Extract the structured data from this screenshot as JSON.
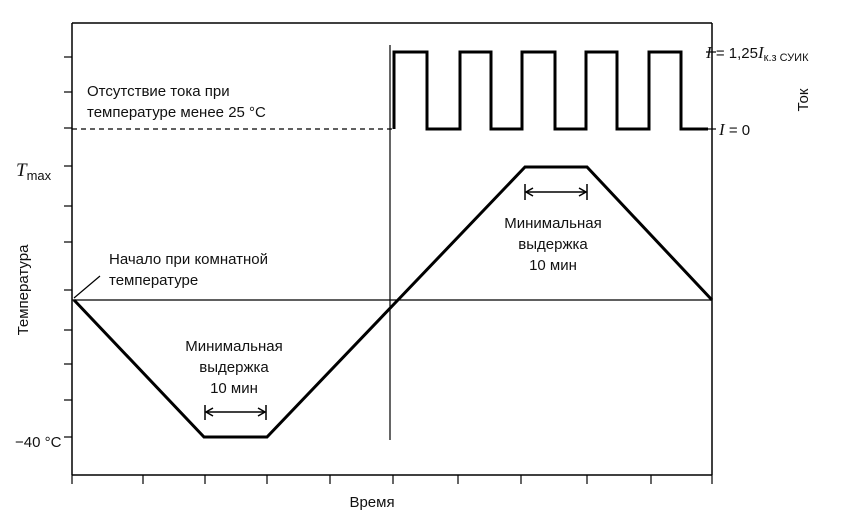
{
  "diagram": {
    "xlabel": "Время",
    "ylabel_left": "Температура",
    "ylabel_right": "Ток",
    "t_max": {
      "sym": "T",
      "sub": "max"
    },
    "minus40": "−40 °C",
    "current_high": {
      "i": "I",
      "eq": " = 1,25",
      "sym": "I",
      "sub": "к.з СУИК"
    },
    "current_zero": {
      "i": "I",
      "eq": " = 0"
    },
    "note_no_current": [
      "Отсутствие тока при",
      "температуре менее 25 °C"
    ],
    "note_start": [
      "Начало при комнатной",
      "температуре"
    ],
    "note_dwell_low": [
      "Минимальная",
      "выдержка",
      "10 мин"
    ],
    "note_dwell_high": [
      "Минимальная",
      "выдержка",
      "10 мин"
    ]
  }
}
